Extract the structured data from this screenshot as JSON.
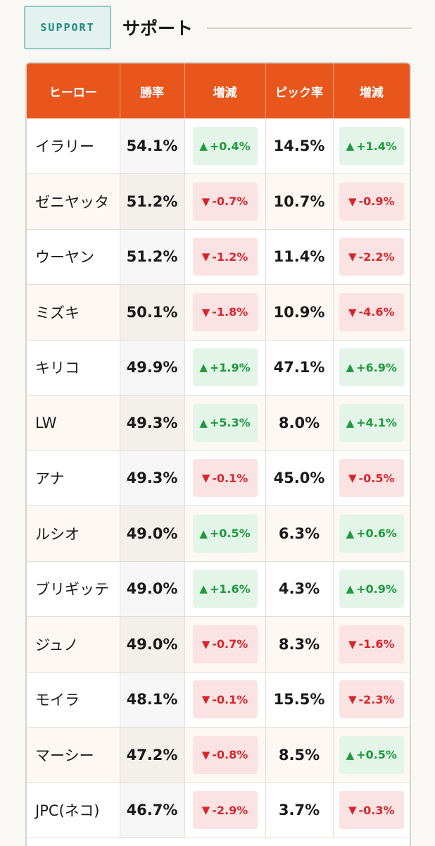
{
  "header": {
    "badge": "SUPPORT",
    "title": "サポート"
  },
  "table": {
    "columns": [
      "ヒーロー",
      "勝率",
      "増減",
      "ピック率",
      "増減"
    ],
    "rows": [
      {
        "hero": "イラリー",
        "win": "54.1%",
        "win_delta": "+0.4%",
        "win_dir": "up",
        "pick": "14.5%",
        "pick_delta": "+1.4%",
        "pick_dir": "up"
      },
      {
        "hero": "ゼニヤッタ",
        "win": "51.2%",
        "win_delta": "-0.7%",
        "win_dir": "down",
        "pick": "10.7%",
        "pick_delta": "-0.9%",
        "pick_dir": "down"
      },
      {
        "hero": "ウーヤン",
        "win": "51.2%",
        "win_delta": "-1.2%",
        "win_dir": "down",
        "pick": "11.4%",
        "pick_delta": "-2.2%",
        "pick_dir": "down"
      },
      {
        "hero": "ミズキ",
        "win": "50.1%",
        "win_delta": "-1.8%",
        "win_dir": "down",
        "pick": "10.9%",
        "pick_delta": "-4.6%",
        "pick_dir": "down"
      },
      {
        "hero": "キリコ",
        "win": "49.9%",
        "win_delta": "+1.9%",
        "win_dir": "up",
        "pick": "47.1%",
        "pick_delta": "+6.9%",
        "pick_dir": "up"
      },
      {
        "hero": "LW",
        "win": "49.3%",
        "win_delta": "+5.3%",
        "win_dir": "up",
        "pick": "8.0%",
        "pick_delta": "+4.1%",
        "pick_dir": "up"
      },
      {
        "hero": "アナ",
        "win": "49.3%",
        "win_delta": "-0.1%",
        "win_dir": "down",
        "pick": "45.0%",
        "pick_delta": "-0.5%",
        "pick_dir": "down"
      },
      {
        "hero": "ルシオ",
        "win": "49.0%",
        "win_delta": "+0.5%",
        "win_dir": "up",
        "pick": "6.3%",
        "pick_delta": "+0.6%",
        "pick_dir": "up"
      },
      {
        "hero": "ブリギッテ",
        "win": "49.0%",
        "win_delta": "+1.6%",
        "win_dir": "up",
        "pick": "4.3%",
        "pick_delta": "+0.9%",
        "pick_dir": "up"
      },
      {
        "hero": "ジュノ",
        "win": "49.0%",
        "win_delta": "-0.7%",
        "win_dir": "down",
        "pick": "8.3%",
        "pick_delta": "-1.6%",
        "pick_dir": "down"
      },
      {
        "hero": "モイラ",
        "win": "48.1%",
        "win_delta": "-0.1%",
        "win_dir": "down",
        "pick": "15.5%",
        "pick_delta": "-2.3%",
        "pick_dir": "down"
      },
      {
        "hero": "マーシー",
        "win": "47.2%",
        "win_delta": "-0.8%",
        "win_dir": "down",
        "pick": "8.5%",
        "pick_delta": "+0.5%",
        "pick_dir": "up"
      },
      {
        "hero": "JPC(ネコ)",
        "win": "46.7%",
        "win_delta": "-2.9%",
        "win_dir": "down",
        "pick": "3.7%",
        "pick_delta": "-0.3%",
        "pick_dir": "down"
      }
    ]
  },
  "colors": {
    "header_bg": "#e8561c",
    "up": "#1e9a3c",
    "down": "#d7262b",
    "badge": "#1f8a7f"
  },
  "icons": {
    "up": "triangle-up-icon",
    "down": "triangle-down-icon"
  }
}
